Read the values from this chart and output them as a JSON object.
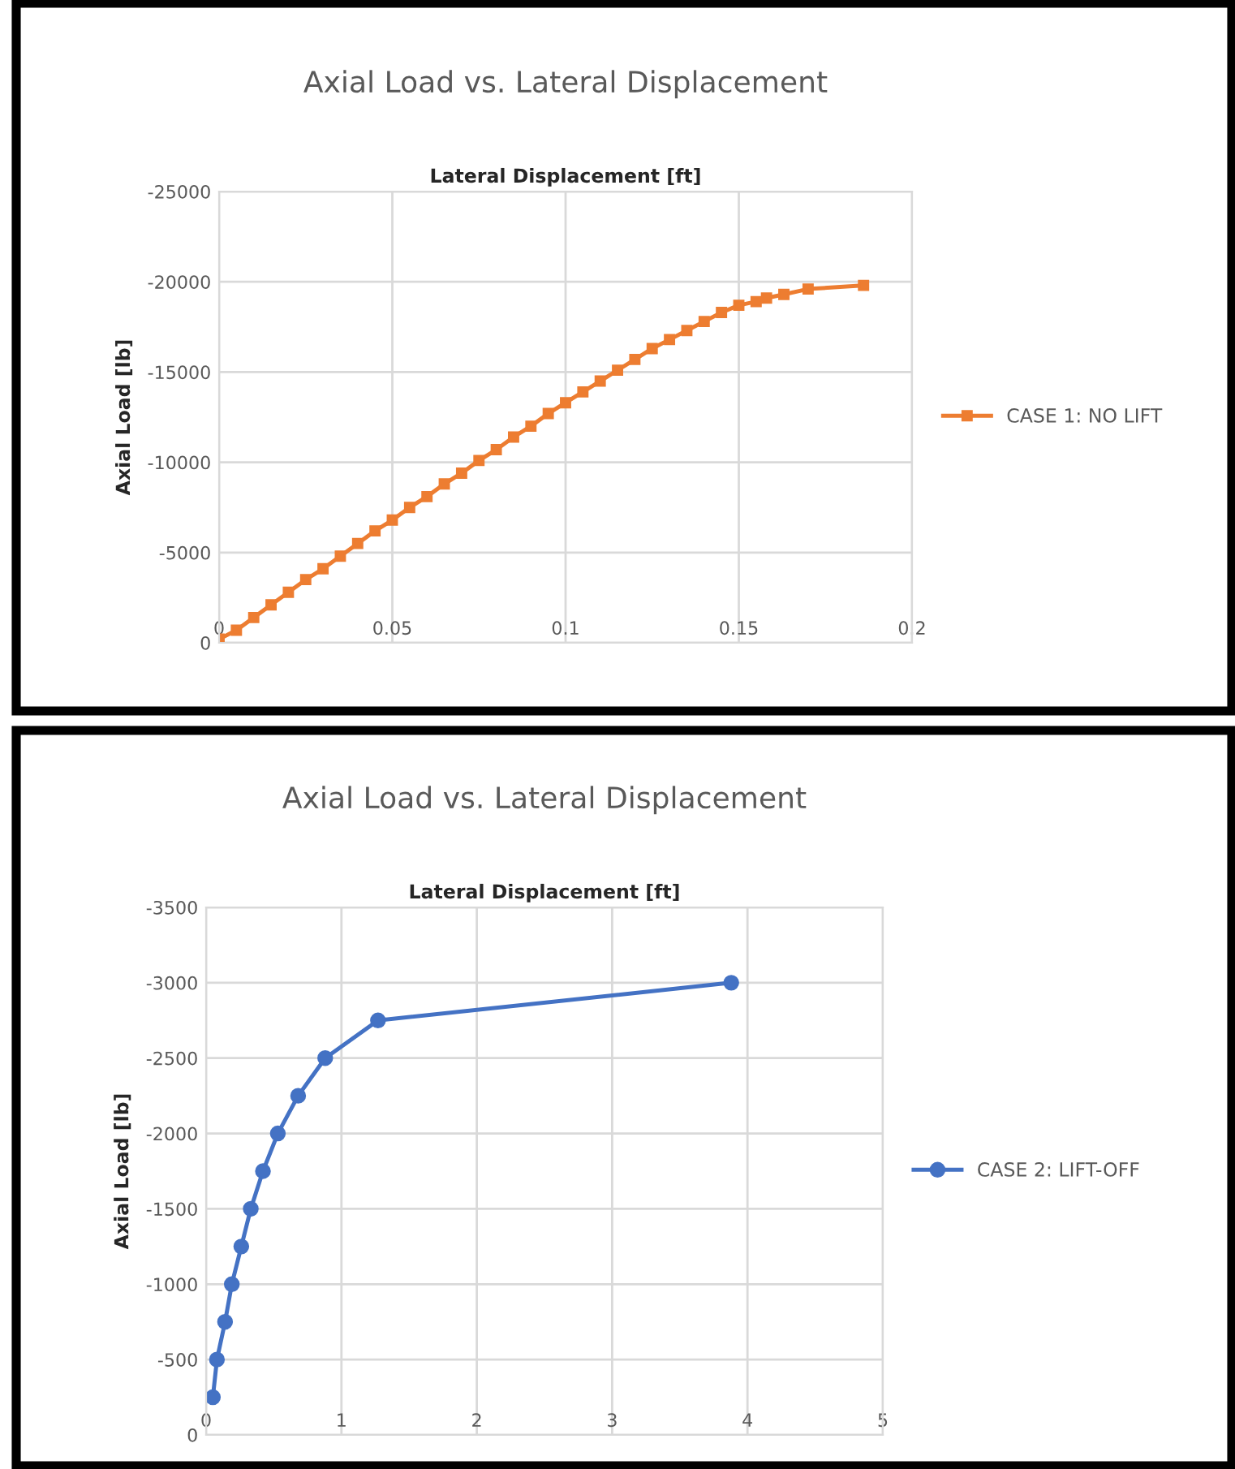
{
  "chart_data": [
    {
      "type": "line",
      "title": "Axial Load vs. Lateral Displacement",
      "xlabel": "Lateral Displacement [ft]",
      "ylabel": "Axial Load [lb]",
      "series": [
        {
          "name": "CASE 1: NO LIFT",
          "color": "#ed7d31",
          "x": [
            0,
            0.005,
            0.01,
            0.015,
            0.02,
            0.025,
            0.03,
            0.035,
            0.04,
            0.045,
            0.05,
            0.055,
            0.06,
            0.065,
            0.07,
            0.075,
            0.08,
            0.085,
            0.09,
            0.095,
            0.1,
            0.105,
            0.11,
            0.115,
            0.12,
            0.125,
            0.13,
            0.135,
            0.14,
            0.145,
            0.15,
            0.155,
            0.158,
            0.163,
            0.17,
            0.186
          ],
          "values": [
            -200,
            -700,
            -1400,
            -2100,
            -2800,
            -3500,
            -4100,
            -4800,
            -5500,
            -6200,
            -6800,
            -7500,
            -8100,
            -8800,
            -9400,
            -10100,
            -10700,
            -11400,
            -12000,
            -12700,
            -13300,
            -13900,
            -14500,
            -15100,
            -15700,
            -16300,
            -16800,
            -17300,
            -17800,
            -18300,
            -18700,
            -18900,
            -19100,
            -19300,
            -19600,
            -19800
          ]
        }
      ],
      "xlim": [
        0,
        0.2
      ],
      "xticks": [
        0,
        0.05,
        0.1,
        0.15,
        0.2
      ],
      "ylim": [
        0,
        -25000
      ],
      "yticks": [
        0,
        -5000,
        -10000,
        -15000,
        -20000,
        -25000
      ],
      "grid": true,
      "legend": "right",
      "marker": "square",
      "line_style": "solid"
    },
    {
      "type": "line",
      "title": "Axial Load vs. Lateral Displacement",
      "xlabel": "Lateral Displacement [ft]",
      "ylabel": "Axial Load [lb]",
      "series": [
        {
          "name": "CASE 2: LIFT-OFF",
          "color": "#4472c4",
          "x": [
            0.05,
            0.08,
            0.14,
            0.19,
            0.26,
            0.33,
            0.42,
            0.53,
            0.68,
            0.88,
            1.27,
            3.88
          ],
          "values": [
            -250,
            -500,
            -750,
            -1000,
            -1250,
            -1500,
            -1750,
            -2000,
            -2250,
            -2500,
            -2750,
            -3000
          ]
        }
      ],
      "xlim": [
        0,
        5
      ],
      "xticks": [
        0,
        1,
        2,
        3,
        4,
        5
      ],
      "ylim": [
        0,
        -3500
      ],
      "yticks": [
        0,
        -500,
        -1000,
        -1500,
        -2000,
        -2500,
        -3000,
        -3500
      ],
      "grid": true,
      "legend": "right",
      "marker": "circle",
      "line_style": "solid"
    }
  ]
}
